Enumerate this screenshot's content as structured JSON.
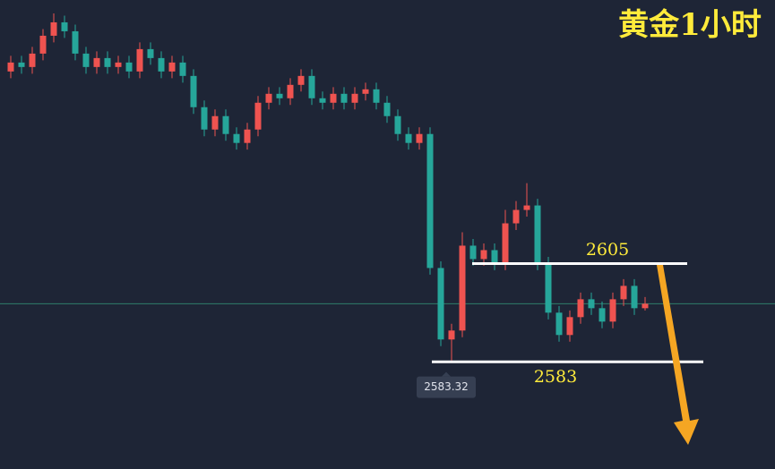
{
  "chart_data": {
    "type": "candlestick",
    "title": "黄金1小时",
    "open": [
      2648,
      2650,
      2649,
      2652,
      2656,
      2659,
      2657,
      2652,
      2649,
      2651,
      2649,
      2650,
      2648,
      2653,
      2651,
      2648,
      2650,
      2647,
      2640,
      2635,
      2638,
      2634,
      2632,
      2635,
      2641,
      2643,
      2642,
      2645,
      2647,
      2642,
      2641,
      2643,
      2641,
      2643,
      2644,
      2641,
      2638,
      2634,
      2632,
      2634,
      2604,
      2588,
      2590,
      2609,
      2606,
      2608,
      2605,
      2614,
      2617,
      2618,
      2605,
      2594,
      2589,
      2593,
      2597,
      2595,
      2592,
      2597,
      2600,
      2595
    ],
    "high": [
      2651.5,
      2651.5,
      2653.5,
      2657.5,
      2661,
      2660.5,
      2658.5,
      2653.5,
      2652.5,
      2652.5,
      2651.5,
      2651.5,
      2654.5,
      2654.5,
      2652.5,
      2651.5,
      2651.5,
      2648.5,
      2641.5,
      2639.5,
      2639.5,
      2635.5,
      2636.5,
      2642.5,
      2644.5,
      2644.5,
      2646.5,
      2648.5,
      2648.5,
      2643.5,
      2644.5,
      2644.5,
      2644.5,
      2645.5,
      2645.5,
      2642.5,
      2639.5,
      2635.5,
      2635.5,
      2635.5,
      2605.5,
      2591.5,
      2612,
      2610.5,
      2609.5,
      2609.5,
      2617,
      2619,
      2623,
      2619.5,
      2606.5,
      2595.5,
      2594.5,
      2598.5,
      2598.5,
      2596.5,
      2598.5,
      2601.5,
      2601.5,
      2597.5
    ],
    "low": [
      2646.5,
      2647.5,
      2647.5,
      2650.5,
      2654.5,
      2655.5,
      2650.5,
      2647.5,
      2647.5,
      2647.5,
      2647.5,
      2646.5,
      2646.5,
      2649.5,
      2646.5,
      2646.5,
      2645.5,
      2638.5,
      2633.5,
      2633.5,
      2632.5,
      2630.5,
      2630.5,
      2633.5,
      2639.5,
      2640.5,
      2640.5,
      2643.5,
      2640.5,
      2639.5,
      2639.5,
      2639.5,
      2639.5,
      2641.5,
      2639.5,
      2636.5,
      2632.5,
      2630.5,
      2630.5,
      2602.5,
      2586.5,
      2583.32,
      2588.5,
      2604.5,
      2604.5,
      2603.5,
      2603.5,
      2612.5,
      2615.5,
      2603.5,
      2592.5,
      2587.5,
      2587.5,
      2591.5,
      2593.5,
      2590.5,
      2590.5,
      2595.5,
      2593.5,
      2594.5
    ],
    "close": [
      2650,
      2649,
      2652,
      2656,
      2659,
      2657,
      2652,
      2649,
      2651,
      2649,
      2650,
      2648,
      2653,
      2651,
      2648,
      2650,
      2647,
      2640,
      2635,
      2638,
      2634,
      2632,
      2635,
      2641,
      2643,
      2642,
      2645,
      2647,
      2642,
      2641,
      2643,
      2641,
      2643,
      2644,
      2641,
      2638,
      2634,
      2632,
      2634,
      2604,
      2588,
      2590,
      2609,
      2606,
      2608,
      2605,
      2614,
      2617,
      2618,
      2605,
      2594,
      2589,
      2593,
      2597,
      2595,
      2592,
      2597,
      2600,
      2595,
      2596
    ],
    "up_color": "#ef5350",
    "down_color": "#26a69a",
    "ylim": [
      2559,
      2664
    ],
    "levels": [
      2605,
      2583
    ],
    "low_label": 2583.32
  }
}
